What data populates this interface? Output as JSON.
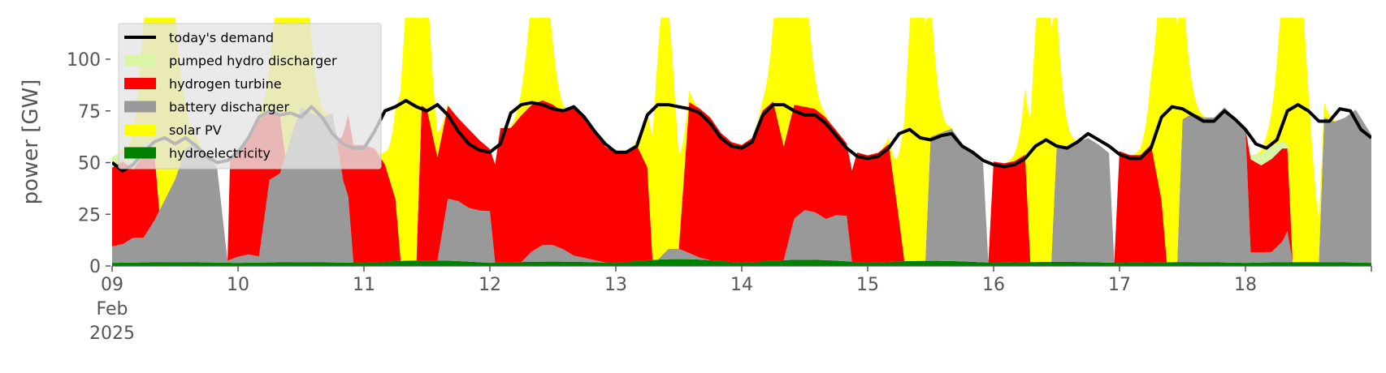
{
  "chart_data": {
    "type": "area",
    "title": "",
    "ylabel": "power [GW]",
    "xlabel": "",
    "ylim": [
      0,
      120
    ],
    "xlim": [
      0,
      240
    ],
    "x_unit": "hours from 2025-02-09 00:00",
    "yticks": [
      0,
      25,
      50,
      75,
      100
    ],
    "xticks": [
      {
        "x": 0,
        "lines": [
          "09",
          "Feb",
          "2025"
        ]
      },
      {
        "x": 24,
        "lines": [
          "10"
        ]
      },
      {
        "x": 48,
        "lines": [
          "11"
        ]
      },
      {
        "x": 72,
        "lines": [
          "12"
        ]
      },
      {
        "x": 96,
        "lines": [
          "13"
        ]
      },
      {
        "x": 120,
        "lines": [
          "14"
        ]
      },
      {
        "x": 144,
        "lines": [
          "15"
        ]
      },
      {
        "x": 168,
        "lines": [
          "16"
        ]
      },
      {
        "x": 192,
        "lines": [
          "17"
        ]
      },
      {
        "x": 216,
        "lines": [
          "18"
        ]
      }
    ],
    "grid": false,
    "legend_position": "top-left",
    "legend": [
      {
        "label": "today's demand",
        "color": "#000000",
        "kind": "line"
      },
      {
        "label": "pumped hydro discharger",
        "color": "#d9f5a6",
        "kind": "patch"
      },
      {
        "label": "hydrogen turbine",
        "color": "#ff0000",
        "kind": "patch"
      },
      {
        "label": "battery discharger",
        "color": "#999999",
        "kind": "patch"
      },
      {
        "label": "solar PV",
        "color": "#ffff00",
        "kind": "patch"
      },
      {
        "label": "hydroelectricity",
        "color": "#008000",
        "kind": "patch"
      }
    ],
    "hydro": {
      "base": 1.5,
      "day_max": [
        0.3,
        0.3,
        1.2,
        0.6,
        1.8,
        1.5,
        1.0,
        0.5,
        0.4,
        0.4
      ]
    },
    "solar_days": [
      {
        "center": 9.3,
        "peak": 150,
        "width": 2.4
      },
      {
        "center": 34.3,
        "peak": 150,
        "width": 2.2
      },
      {
        "center": 57.3,
        "peak": 150,
        "width": 2.1
      },
      {
        "center": 81.5,
        "peak": 78,
        "width": 1.8
      },
      {
        "center": 105.3,
        "peak": 125,
        "width": 1.9
      },
      {
        "center": 129.5,
        "peak": 150,
        "width": 2.1
      },
      {
        "center": 153.5,
        "peak": 150,
        "width": 2.0
      },
      {
        "center": 177.5,
        "peak": 150,
        "width": 2.0
      },
      {
        "center": 201.5,
        "peak": 150,
        "width": 2.0
      },
      {
        "center": 225.6,
        "peak": 150,
        "width": 2.2
      }
    ],
    "demand": [
      [
        0,
        50
      ],
      [
        2,
        46
      ],
      [
        4,
        49
      ],
      [
        6,
        55
      ],
      [
        8,
        60
      ],
      [
        10,
        62
      ],
      [
        12,
        59
      ],
      [
        14,
        62
      ],
      [
        16,
        58
      ],
      [
        18,
        53
      ],
      [
        20,
        50
      ],
      [
        22,
        51
      ],
      [
        24,
        55
      ],
      [
        26,
        62
      ],
      [
        28,
        72
      ],
      [
        30,
        75
      ],
      [
        32,
        73
      ],
      [
        34,
        74
      ],
      [
        36,
        72
      ],
      [
        38,
        77
      ],
      [
        40,
        72
      ],
      [
        42,
        64
      ],
      [
        44,
        59
      ],
      [
        46,
        57
      ],
      [
        48,
        57
      ],
      [
        50,
        65
      ],
      [
        52,
        75
      ],
      [
        54,
        77
      ],
      [
        56,
        80
      ],
      [
        58,
        77
      ],
      [
        60,
        75
      ],
      [
        62,
        78
      ],
      [
        64,
        73
      ],
      [
        66,
        65
      ],
      [
        68,
        59
      ],
      [
        70,
        56
      ],
      [
        72,
        55
      ],
      [
        74,
        59
      ],
      [
        76,
        74
      ],
      [
        78,
        78
      ],
      [
        80,
        79
      ],
      [
        82,
        78
      ],
      [
        84,
        76
      ],
      [
        86,
        75
      ],
      [
        88,
        77
      ],
      [
        90,
        72
      ],
      [
        92,
        65
      ],
      [
        94,
        59
      ],
      [
        96,
        55
      ],
      [
        98,
        55
      ],
      [
        100,
        58
      ],
      [
        102,
        73
      ],
      [
        104,
        78
      ],
      [
        106,
        78
      ],
      [
        108,
        77
      ],
      [
        110,
        76
      ],
      [
        112,
        74
      ],
      [
        114,
        69
      ],
      [
        116,
        62
      ],
      [
        118,
        58
      ],
      [
        120,
        57
      ],
      [
        122,
        60
      ],
      [
        124,
        73
      ],
      [
        126,
        78
      ],
      [
        128,
        78
      ],
      [
        130,
        75
      ],
      [
        132,
        73
      ],
      [
        134,
        73
      ],
      [
        136,
        69
      ],
      [
        138,
        63
      ],
      [
        140,
        57
      ],
      [
        142,
        53
      ],
      [
        144,
        52
      ],
      [
        146,
        53
      ],
      [
        148,
        57
      ],
      [
        150,
        64
      ],
      [
        152,
        66
      ],
      [
        154,
        62
      ],
      [
        156,
        61
      ],
      [
        158,
        63
      ],
      [
        160,
        64
      ],
      [
        162,
        58
      ],
      [
        164,
        55
      ],
      [
        166,
        51
      ],
      [
        168,
        49
      ],
      [
        170,
        48
      ],
      [
        172,
        49
      ],
      [
        174,
        52
      ],
      [
        176,
        58
      ],
      [
        178,
        61
      ],
      [
        180,
        58
      ],
      [
        182,
        57
      ],
      [
        184,
        60
      ],
      [
        186,
        64
      ],
      [
        188,
        61
      ],
      [
        190,
        58
      ],
      [
        192,
        54
      ],
      [
        194,
        52
      ],
      [
        196,
        52
      ],
      [
        198,
        57
      ],
      [
        200,
        72
      ],
      [
        202,
        77
      ],
      [
        204,
        76
      ],
      [
        206,
        73
      ],
      [
        208,
        70
      ],
      [
        210,
        70
      ],
      [
        212,
        75
      ],
      [
        214,
        71
      ],
      [
        216,
        66
      ],
      [
        218,
        59
      ],
      [
        220,
        57
      ],
      [
        222,
        61
      ],
      [
        224,
        75
      ],
      [
        226,
        78
      ],
      [
        228,
        75
      ],
      [
        230,
        70
      ],
      [
        232,
        70
      ],
      [
        234,
        76
      ],
      [
        236,
        75
      ],
      [
        238,
        66
      ],
      [
        240,
        62
      ]
    ],
    "pumped_hydro": [
      [
        0,
        5
      ],
      [
        2,
        5
      ],
      [
        4,
        4
      ],
      [
        6,
        6
      ],
      [
        8,
        3
      ],
      [
        9.5,
        0
      ],
      [
        216,
        0
      ],
      [
        218,
        4
      ],
      [
        220,
        7
      ],
      [
        222,
        5
      ],
      [
        224,
        2
      ],
      [
        225,
        0
      ],
      [
        240,
        0
      ]
    ],
    "battery": [
      [
        0,
        8
      ],
      [
        2,
        9
      ],
      [
        4,
        12
      ],
      [
        6,
        12
      ],
      [
        8,
        20
      ],
      [
        10,
        30
      ],
      [
        12,
        40
      ],
      [
        14,
        55
      ],
      [
        16,
        58
      ],
      [
        18,
        52
      ],
      [
        20,
        46
      ],
      [
        22,
        1
      ],
      [
        24,
        3
      ],
      [
        26,
        4
      ],
      [
        28,
        3
      ],
      [
        30,
        40
      ],
      [
        32,
        43
      ],
      [
        34,
        60
      ],
      [
        36,
        75
      ],
      [
        38,
        72
      ],
      [
        40,
        70
      ],
      [
        42,
        72
      ],
      [
        44,
        40
      ],
      [
        45,
        32
      ],
      [
        46,
        0
      ],
      [
        62,
        0
      ],
      [
        64,
        30
      ],
      [
        66,
        29
      ],
      [
        68,
        26
      ],
      [
        70,
        25
      ],
      [
        72,
        25
      ],
      [
        73,
        0
      ],
      [
        78,
        0
      ],
      [
        80,
        5
      ],
      [
        82,
        8
      ],
      [
        84,
        8
      ],
      [
        86,
        6
      ],
      [
        88,
        3
      ],
      [
        90,
        2
      ],
      [
        92,
        1
      ],
      [
        94,
        0
      ],
      [
        104,
        0
      ],
      [
        106,
        5
      ],
      [
        108,
        5
      ],
      [
        110,
        3
      ],
      [
        112,
        1
      ],
      [
        114,
        0
      ],
      [
        128,
        0
      ],
      [
        130,
        20
      ],
      [
        132,
        24
      ],
      [
        134,
        23
      ],
      [
        136,
        20
      ],
      [
        138,
        22
      ],
      [
        140,
        22
      ],
      [
        141,
        0
      ],
      [
        155,
        0
      ],
      [
        156,
        60
      ],
      [
        158,
        62
      ],
      [
        160,
        64
      ],
      [
        162,
        57
      ],
      [
        164,
        52
      ],
      [
        166,
        48
      ],
      [
        167,
        0
      ],
      [
        179,
        0
      ],
      [
        180,
        55
      ],
      [
        182,
        56
      ],
      [
        184,
        58
      ],
      [
        186,
        60
      ],
      [
        188,
        57
      ],
      [
        190,
        53
      ],
      [
        191,
        0
      ],
      [
        203,
        0
      ],
      [
        204,
        69
      ],
      [
        206,
        72
      ],
      [
        208,
        70
      ],
      [
        210,
        70
      ],
      [
        212,
        75
      ],
      [
        214,
        70
      ],
      [
        216,
        65
      ],
      [
        217,
        5
      ],
      [
        219,
        5
      ],
      [
        221,
        5
      ],
      [
        223,
        10
      ],
      [
        224,
        15
      ],
      [
        225,
        0
      ],
      [
        230,
        0
      ],
      [
        231,
        70
      ],
      [
        233,
        68
      ],
      [
        235,
        70
      ],
      [
        237,
        74
      ],
      [
        240,
        62
      ]
    ],
    "hydrogen": [
      [
        0,
        38
      ],
      [
        2,
        40
      ],
      [
        4,
        33
      ],
      [
        6,
        40
      ],
      [
        8,
        35
      ],
      [
        9,
        0
      ],
      [
        22,
        0
      ],
      [
        22.5,
        50
      ],
      [
        24,
        52
      ],
      [
        26,
        56
      ],
      [
        28,
        66
      ],
      [
        30,
        33
      ],
      [
        32,
        28
      ],
      [
        33,
        0
      ],
      [
        42,
        0
      ],
      [
        43,
        2
      ],
      [
        44,
        22
      ],
      [
        46,
        57
      ],
      [
        48,
        57
      ],
      [
        50,
        55
      ],
      [
        52,
        47
      ],
      [
        54,
        30
      ],
      [
        55,
        0
      ],
      [
        58,
        0
      ],
      [
        59,
        75
      ],
      [
        60,
        73
      ],
      [
        62,
        50
      ],
      [
        64,
        45
      ],
      [
        66,
        40
      ],
      [
        68,
        38
      ],
      [
        70,
        34
      ],
      [
        72,
        30
      ],
      [
        74,
        65
      ],
      [
        76,
        65
      ],
      [
        78,
        71
      ],
      [
        80,
        71
      ],
      [
        82,
        70
      ],
      [
        84,
        68
      ],
      [
        86,
        66
      ],
      [
        88,
        72
      ],
      [
        90,
        69
      ],
      [
        92,
        62
      ],
      [
        94,
        56
      ],
      [
        96,
        53
      ],
      [
        98,
        53
      ],
      [
        100,
        56
      ],
      [
        102,
        45
      ],
      [
        103,
        0
      ],
      [
        108,
        0
      ],
      [
        110,
        73
      ],
      [
        112,
        72
      ],
      [
        114,
        69
      ],
      [
        116,
        62
      ],
      [
        118,
        58
      ],
      [
        120,
        57
      ],
      [
        122,
        60
      ],
      [
        124,
        73
      ],
      [
        126,
        77
      ],
      [
        128,
        55
      ],
      [
        130,
        55
      ],
      [
        132,
        50
      ],
      [
        134,
        50
      ],
      [
        136,
        49
      ],
      [
        138,
        41
      ],
      [
        140,
        35
      ],
      [
        142,
        53
      ],
      [
        144,
        52
      ],
      [
        146,
        53
      ],
      [
        148,
        57
      ],
      [
        150,
        20
      ],
      [
        151,
        0
      ],
      [
        167,
        0
      ],
      [
        168,
        49
      ],
      [
        170,
        48
      ],
      [
        172,
        49
      ],
      [
        174,
        52
      ],
      [
        175,
        0
      ],
      [
        191,
        0
      ],
      [
        192,
        54
      ],
      [
        194,
        52
      ],
      [
        196,
        52
      ],
      [
        198,
        57
      ],
      [
        200,
        30
      ],
      [
        201,
        0
      ],
      [
        216,
        0
      ],
      [
        217,
        45
      ],
      [
        219,
        42
      ],
      [
        221,
        45
      ],
      [
        223,
        45
      ],
      [
        224,
        40
      ],
      [
        225,
        0
      ],
      [
        240,
        0
      ]
    ]
  }
}
